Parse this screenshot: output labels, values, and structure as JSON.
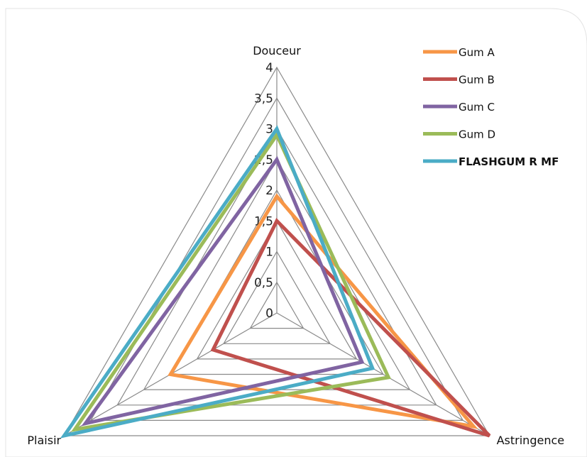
{
  "chart_data": {
    "type": "radar",
    "axes": [
      "Douceur",
      "Astringence",
      "Plaisir"
    ],
    "rlim": [
      0,
      4
    ],
    "ticks": [
      "0",
      "0,5",
      "1",
      "1,5",
      "2",
      "2,5",
      "3",
      "3,5",
      "4"
    ],
    "tick_values": [
      0,
      0.5,
      1,
      1.5,
      2,
      2.5,
      3,
      3.5,
      4
    ],
    "grid": true,
    "legend_position": "top-right",
    "series": [
      {
        "name": "Gum A",
        "values": [
          1.9,
          3.7,
          2.0
        ],
        "color": "#f79646",
        "bold": false
      },
      {
        "name": "Gum B",
        "values": [
          1.5,
          4.0,
          1.2
        ],
        "color": "#c0504d",
        "bold": false
      },
      {
        "name": "Gum C",
        "values": [
          2.5,
          1.6,
          3.6
        ],
        "color": "#8064a2",
        "bold": false
      },
      {
        "name": "Gum D",
        "values": [
          2.9,
          2.1,
          3.8
        ],
        "color": "#9bbb59",
        "bold": false
      },
      {
        "name": "FLASHGUM R MF",
        "values": [
          3.0,
          1.8,
          4.0
        ],
        "color": "#4bacc6",
        "bold": true
      }
    ]
  }
}
